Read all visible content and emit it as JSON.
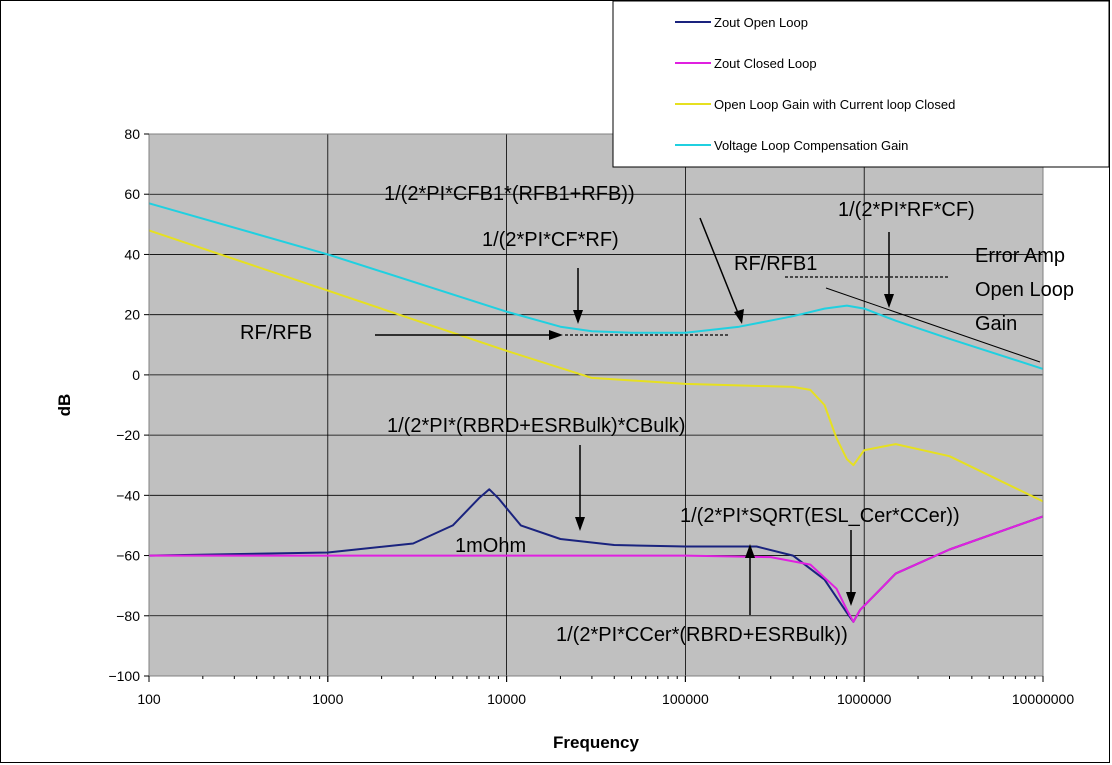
{
  "chart_data": {
    "type": "line",
    "xscale": "log",
    "xlim": [
      100,
      10000000
    ],
    "ylim": [
      -100,
      80
    ],
    "grid": true,
    "legend_position": "top-right",
    "xlabel": "Frequency",
    "ylabel": "dB",
    "xtick_labels": [
      "100",
      "1000",
      "10000",
      "100000",
      "1000000",
      "10000000"
    ],
    "ytick_labels": [
      "80",
      "60",
      "40",
      "20",
      "0",
      "-20",
      "-40",
      "-60",
      "-80",
      "-100"
    ],
    "series": [
      {
        "name": "Zout Open Loop",
        "color": "#1a237e",
        "x": [
          100,
          1000,
          3000,
          5000,
          7000,
          8000,
          9000,
          12000,
          20000,
          40000,
          100000,
          250000,
          400000,
          600000,
          800000,
          870000,
          950000,
          1500000,
          3000000,
          10000000
        ],
        "y": [
          -60,
          -59,
          -56,
          -50,
          -41,
          -38,
          -41,
          -50,
          -54.5,
          -56.5,
          -57,
          -57,
          -60,
          -68,
          -79,
          -82,
          -78,
          -66,
          -58,
          -47
        ]
      },
      {
        "name": "Zout Closed Loop",
        "color": "#e020e0",
        "x": [
          100,
          1000,
          10000,
          100000,
          300000,
          500000,
          700000,
          800000,
          870000,
          950000,
          1500000,
          3000000,
          10000000
        ],
        "y": [
          -60,
          -60,
          -60,
          -60,
          -60.5,
          -63,
          -71,
          -78,
          -82,
          -78,
          -66,
          -58,
          -47
        ]
      },
      {
        "name": "Open Loop Gain with Current loop Closed",
        "color": "#e6e020",
        "x": [
          100,
          1000,
          10000,
          30000,
          100000,
          400000,
          500000,
          600000,
          700000,
          800000,
          870000,
          1000000,
          1500000,
          3000000,
          10000000
        ],
        "y": [
          48,
          28,
          8,
          -1,
          -3,
          -4,
          -5,
          -10,
          -21,
          -28,
          -30,
          -25,
          -23,
          -27,
          -42
        ]
      },
      {
        "name": "Voltage Loop Compensation Gain",
        "color": "#20d0e0",
        "x": [
          100,
          1000,
          10000,
          20000,
          30000,
          50000,
          100000,
          200000,
          400000,
          600000,
          800000,
          1000000,
          1500000,
          3000000,
          10000000
        ],
        "y": [
          57,
          40,
          21,
          16,
          14.5,
          14,
          14,
          16,
          19.5,
          22,
          23,
          22,
          18,
          12,
          2
        ]
      }
    ],
    "annotations": [
      {
        "text": "1/(2*PI*CFB1*(RFB1+RFB))"
      },
      {
        "text": "1/(2*PI*RF*CF)"
      },
      {
        "text": "1/(2*PI*CF*RF)"
      },
      {
        "text": "RF/RFB1"
      },
      {
        "text": "Error Amp"
      },
      {
        "text": "Open Loop"
      },
      {
        "text": "Gain"
      },
      {
        "text": "RF/RFB"
      },
      {
        "text": "1/(2*PI*(RBRD+ESRBulk)*CBulk)"
      },
      {
        "text": "1/(2*PI*SQRT(ESL_Cer*CCer))"
      },
      {
        "text": "1mOhm"
      },
      {
        "text": "1/(2*PI*CCer*(RBRD+ESRBulk))"
      }
    ]
  }
}
